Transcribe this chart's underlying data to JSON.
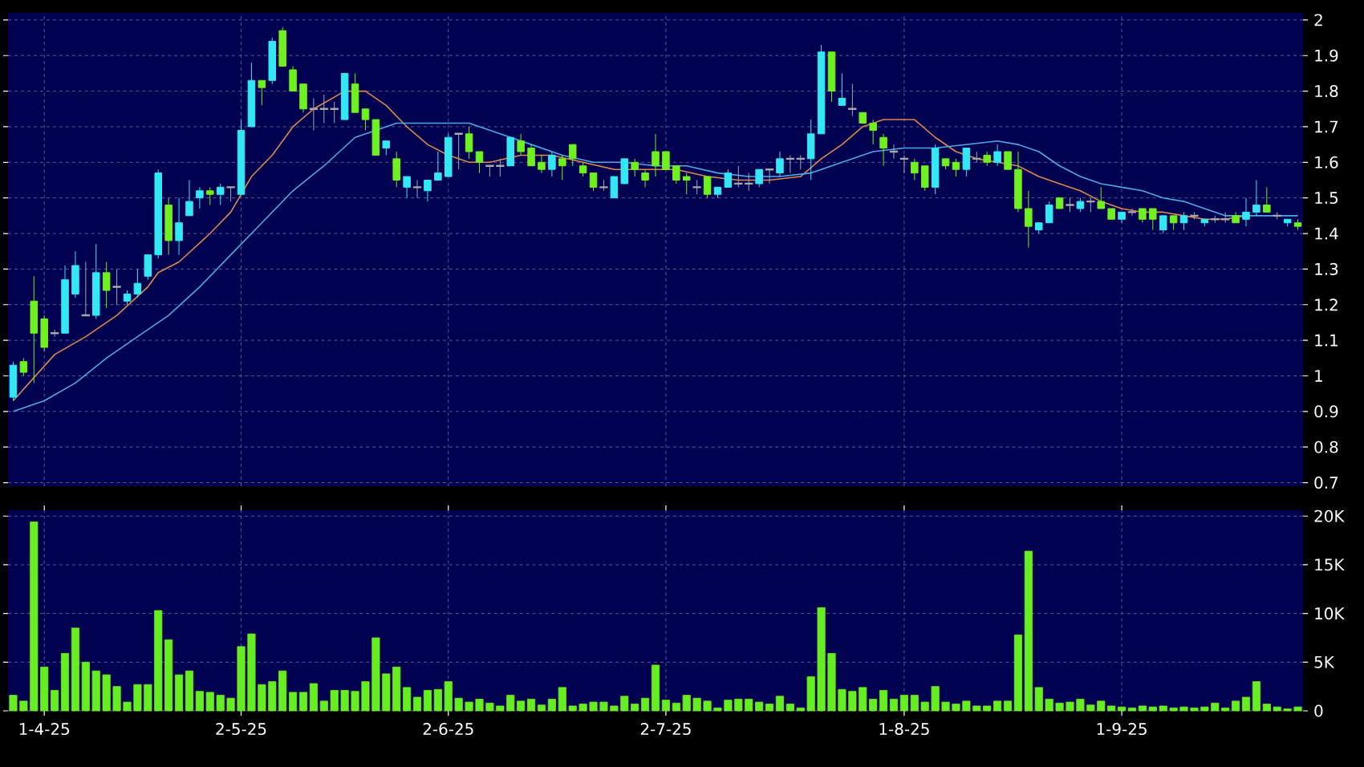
{
  "chart_data": [
    {
      "type": "candlestick",
      "grid": true,
      "tick_labels": "y",
      "ylim": [
        0.69,
        2.02
      ],
      "yticks": [
        0.7,
        0.8,
        0.9,
        1,
        1.1,
        1.2,
        1.3,
        1.4,
        1.5,
        1.6,
        1.7,
        1.8,
        1.9,
        2
      ],
      "categories": [
        null,
        null,
        null,
        null,
        null,
        null,
        null,
        null,
        null,
        null,
        null,
        null,
        null,
        null,
        null,
        null,
        null,
        null,
        null,
        null,
        null,
        null,
        null,
        null,
        null,
        null,
        null,
        null,
        null,
        null,
        null,
        null,
        null,
        null,
        null,
        null,
        null,
        null,
        null,
        null,
        null,
        null,
        null,
        null,
        null,
        null,
        null,
        null,
        null,
        null,
        null,
        null,
        null,
        null,
        null,
        null,
        null,
        null,
        null,
        null,
        null,
        null,
        null,
        null,
        null,
        null,
        null,
        null,
        null,
        null,
        null,
        null,
        null,
        null,
        null,
        null,
        null,
        null,
        null,
        null,
        null,
        null,
        null,
        null,
        null,
        null,
        null,
        null,
        null,
        null,
        null,
        null,
        null,
        null,
        null,
        null,
        null,
        null,
        null,
        null,
        null,
        null,
        null,
        null,
        null,
        null,
        null,
        null,
        null,
        null,
        null,
        null,
        null,
        null,
        null,
        null,
        null,
        null,
        null,
        null,
        null,
        null,
        null,
        null,
        null
      ],
      "ohlc": [
        [
          0.94,
          1.04,
          0.93,
          1.03
        ],
        [
          1.04,
          1.05,
          1.0,
          1.01
        ],
        [
          1.21,
          1.28,
          0.98,
          1.12
        ],
        [
          1.16,
          1.17,
          1.07,
          1.08
        ],
        [
          1.12,
          1.13,
          1.11,
          1.12
        ],
        [
          1.12,
          1.31,
          1.12,
          1.27
        ],
        [
          1.23,
          1.35,
          1.22,
          1.31
        ],
        [
          1.17,
          1.32,
          1.17,
          1.17
        ],
        [
          1.17,
          1.37,
          1.16,
          1.29
        ],
        [
          1.29,
          1.32,
          1.19,
          1.24
        ],
        [
          1.25,
          1.3,
          1.2,
          1.25
        ],
        [
          1.21,
          1.24,
          1.2,
          1.23
        ],
        [
          1.23,
          1.3,
          1.22,
          1.26
        ],
        [
          1.28,
          1.34,
          1.27,
          1.34
        ],
        [
          1.34,
          1.58,
          1.33,
          1.57
        ],
        [
          1.48,
          1.5,
          1.34,
          1.38
        ],
        [
          1.38,
          1.5,
          1.34,
          1.43
        ],
        [
          1.45,
          1.55,
          1.45,
          1.49
        ],
        [
          1.5,
          1.53,
          1.47,
          1.52
        ],
        [
          1.52,
          1.53,
          1.48,
          1.51
        ],
        [
          1.51,
          1.54,
          1.48,
          1.53
        ],
        [
          1.53,
          1.53,
          1.49,
          1.53
        ],
        [
          1.51,
          1.72,
          1.51,
          1.69
        ],
        [
          1.7,
          1.88,
          1.7,
          1.83
        ],
        [
          1.83,
          1.83,
          1.76,
          1.81
        ],
        [
          1.83,
          1.95,
          1.82,
          1.94
        ],
        [
          1.97,
          1.98,
          1.87,
          1.87
        ],
        [
          1.86,
          1.87,
          1.8,
          1.8
        ],
        [
          1.82,
          1.82,
          1.74,
          1.75
        ],
        [
          1.75,
          1.78,
          1.69,
          1.75
        ],
        [
          1.75,
          1.79,
          1.71,
          1.75
        ],
        [
          1.75,
          1.77,
          1.71,
          1.75
        ],
        [
          1.72,
          1.85,
          1.72,
          1.85
        ],
        [
          1.82,
          1.85,
          1.74,
          1.74
        ],
        [
          1.75,
          1.75,
          1.69,
          1.72
        ],
        [
          1.72,
          1.72,
          1.62,
          1.62
        ],
        [
          1.64,
          1.66,
          1.62,
          1.66
        ],
        [
          1.61,
          1.63,
          1.53,
          1.55
        ],
        [
          1.53,
          1.56,
          1.5,
          1.56
        ],
        [
          1.53,
          1.55,
          1.5,
          1.53
        ],
        [
          1.52,
          1.55,
          1.49,
          1.55
        ],
        [
          1.55,
          1.63,
          1.55,
          1.57
        ],
        [
          1.56,
          1.68,
          1.56,
          1.67
        ],
        [
          1.68,
          1.68,
          1.58,
          1.68
        ],
        [
          1.68,
          1.7,
          1.61,
          1.63
        ],
        [
          1.63,
          1.63,
          1.57,
          1.6
        ],
        [
          1.59,
          1.59,
          1.56,
          1.59
        ],
        [
          1.59,
          1.61,
          1.56,
          1.59
        ],
        [
          1.59,
          1.67,
          1.59,
          1.67
        ],
        [
          1.66,
          1.68,
          1.62,
          1.63
        ],
        [
          1.64,
          1.65,
          1.59,
          1.59
        ],
        [
          1.6,
          1.62,
          1.57,
          1.58
        ],
        [
          1.58,
          1.63,
          1.56,
          1.62
        ],
        [
          1.61,
          1.62,
          1.55,
          1.59
        ],
        [
          1.65,
          1.65,
          1.59,
          1.61
        ],
        [
          1.59,
          1.6,
          1.56,
          1.57
        ],
        [
          1.57,
          1.57,
          1.52,
          1.53
        ],
        [
          1.53,
          1.55,
          1.52,
          1.53
        ],
        [
          1.5,
          1.56,
          1.5,
          1.56
        ],
        [
          1.54,
          1.61,
          1.54,
          1.61
        ],
        [
          1.6,
          1.61,
          1.56,
          1.58
        ],
        [
          1.57,
          1.58,
          1.53,
          1.55
        ],
        [
          1.63,
          1.68,
          1.56,
          1.59
        ],
        [
          1.63,
          1.63,
          1.58,
          1.58
        ],
        [
          1.59,
          1.59,
          1.54,
          1.55
        ],
        [
          1.56,
          1.57,
          1.51,
          1.55
        ],
        [
          1.53,
          1.55,
          1.51,
          1.53
        ],
        [
          1.56,
          1.56,
          1.5,
          1.51
        ],
        [
          1.51,
          1.53,
          1.5,
          1.53
        ],
        [
          1.53,
          1.58,
          1.53,
          1.57
        ],
        [
          1.54,
          1.59,
          1.53,
          1.54
        ],
        [
          1.54,
          1.57,
          1.52,
          1.54
        ],
        [
          1.54,
          1.58,
          1.53,
          1.58
        ],
        [
          1.58,
          1.58,
          1.54,
          1.58
        ],
        [
          1.57,
          1.63,
          1.56,
          1.61
        ],
        [
          1.61,
          1.62,
          1.57,
          1.61
        ],
        [
          1.61,
          1.62,
          1.58,
          1.61
        ],
        [
          1.61,
          1.72,
          1.55,
          1.68
        ],
        [
          1.68,
          1.93,
          1.68,
          1.91
        ],
        [
          1.91,
          1.91,
          1.77,
          1.8
        ],
        [
          1.76,
          1.85,
          1.76,
          1.78
        ],
        [
          1.75,
          1.82,
          1.73,
          1.75
        ],
        [
          1.74,
          1.74,
          1.71,
          1.71
        ],
        [
          1.71,
          1.72,
          1.65,
          1.69
        ],
        [
          1.67,
          1.68,
          1.59,
          1.64
        ],
        [
          1.63,
          1.65,
          1.61,
          1.63
        ],
        [
          1.61,
          1.62,
          1.57,
          1.61
        ],
        [
          1.6,
          1.61,
          1.55,
          1.57
        ],
        [
          1.59,
          1.59,
          1.52,
          1.53
        ],
        [
          1.53,
          1.65,
          1.51,
          1.64
        ],
        [
          1.61,
          1.61,
          1.58,
          1.59
        ],
        [
          1.6,
          1.61,
          1.56,
          1.58
        ],
        [
          1.58,
          1.64,
          1.56,
          1.64
        ],
        [
          1.61,
          1.63,
          1.6,
          1.61
        ],
        [
          1.62,
          1.63,
          1.59,
          1.6
        ],
        [
          1.6,
          1.65,
          1.59,
          1.63
        ],
        [
          1.63,
          1.63,
          1.58,
          1.58
        ],
        [
          1.58,
          1.63,
          1.46,
          1.47
        ],
        [
          1.47,
          1.52,
          1.36,
          1.42
        ],
        [
          1.41,
          1.43,
          1.4,
          1.43
        ],
        [
          1.43,
          1.49,
          1.43,
          1.48
        ],
        [
          1.5,
          1.5,
          1.47,
          1.47
        ],
        [
          1.48,
          1.5,
          1.46,
          1.48
        ],
        [
          1.47,
          1.5,
          1.46,
          1.49
        ],
        [
          1.49,
          1.5,
          1.46,
          1.49
        ],
        [
          1.49,
          1.53,
          1.47,
          1.47
        ],
        [
          1.47,
          1.47,
          1.44,
          1.44
        ],
        [
          1.44,
          1.46,
          1.43,
          1.46
        ],
        [
          1.46,
          1.47,
          1.45,
          1.46
        ],
        [
          1.47,
          1.47,
          1.43,
          1.44
        ],
        [
          1.47,
          1.47,
          1.41,
          1.44
        ],
        [
          1.41,
          1.45,
          1.4,
          1.45
        ],
        [
          1.45,
          1.45,
          1.41,
          1.43
        ],
        [
          1.43,
          1.46,
          1.41,
          1.45
        ],
        [
          1.45,
          1.46,
          1.44,
          1.45
        ],
        [
          1.43,
          1.44,
          1.42,
          1.44
        ],
        [
          1.44,
          1.45,
          1.43,
          1.44
        ],
        [
          1.44,
          1.46,
          1.43,
          1.44
        ],
        [
          1.45,
          1.46,
          1.43,
          1.43
        ],
        [
          1.44,
          1.5,
          1.42,
          1.46
        ],
        [
          1.46,
          1.55,
          1.45,
          1.48
        ],
        [
          1.48,
          1.53,
          1.46,
          1.46
        ],
        [
          1.45,
          1.46,
          1.44,
          1.45
        ],
        [
          1.43,
          1.44,
          1.42,
          1.44
        ],
        [
          1.43,
          1.44,
          1.41,
          1.42
        ]
      ],
      "colors": [
        "#33e8f4",
        "#6ef021",
        "#6ef021",
        "#6ef021",
        "#a8a8a8",
        "#33e8f4",
        "#33e8f4",
        "#a8a8a8",
        "#33e8f4",
        "#6ef021",
        "#a8a8a8",
        "#33e8f4",
        "#33e8f4",
        "#33e8f4",
        "#33e8f4",
        "#6ef021",
        "#33e8f4",
        "#33e8f4",
        "#33e8f4",
        "#6ef021",
        "#33e8f4",
        "#a8a8a8",
        "#33e8f4",
        "#33e8f4",
        "#6ef021",
        "#33e8f4",
        "#6ef021",
        "#6ef021",
        "#6ef021",
        "#a8a8a8",
        "#a8a8a8",
        "#a8a8a8",
        "#33e8f4",
        "#6ef021",
        "#6ef021",
        "#6ef021",
        "#33e8f4",
        "#6ef021",
        "#33e8f4",
        "#a8a8a8",
        "#33e8f4",
        "#33e8f4",
        "#33e8f4",
        "#a8a8a8",
        "#6ef021",
        "#6ef021",
        "#a8a8a8",
        "#a8a8a8",
        "#33e8f4",
        "#6ef021",
        "#6ef021",
        "#6ef021",
        "#33e8f4",
        "#6ef021",
        "#6ef021",
        "#6ef021",
        "#6ef021",
        "#a8a8a8",
        "#33e8f4",
        "#33e8f4",
        "#6ef021",
        "#6ef021",
        "#6ef021",
        "#6ef021",
        "#6ef021",
        "#6ef021",
        "#a8a8a8",
        "#6ef021",
        "#33e8f4",
        "#33e8f4",
        "#a8a8a8",
        "#a8a8a8",
        "#33e8f4",
        "#a8a8a8",
        "#33e8f4",
        "#a8a8a8",
        "#a8a8a8",
        "#33e8f4",
        "#33e8f4",
        "#6ef021",
        "#33e8f4",
        "#a8a8a8",
        "#6ef021",
        "#6ef021",
        "#6ef021",
        "#a8a8a8",
        "#a8a8a8",
        "#6ef021",
        "#6ef021",
        "#33e8f4",
        "#6ef021",
        "#6ef021",
        "#33e8f4",
        "#a8a8a8",
        "#6ef021",
        "#33e8f4",
        "#6ef021",
        "#6ef021",
        "#6ef021",
        "#33e8f4",
        "#33e8f4",
        "#6ef021",
        "#a8a8a8",
        "#33e8f4",
        "#a8a8a8",
        "#6ef021",
        "#6ef021",
        "#33e8f4",
        "#a8a8a8",
        "#6ef021",
        "#6ef021",
        "#33e8f4",
        "#6ef021",
        "#33e8f4",
        "#a8a8a8",
        "#33e8f4",
        "#a8a8a8",
        "#a8a8a8",
        "#6ef021",
        "#33e8f4",
        "#33e8f4",
        "#6ef021",
        "#a8a8a8",
        "#33e8f4",
        "#6ef021"
      ],
      "series": [
        {
          "type": "line",
          "color": "#e0874c",
          "values": [
            0.93,
            null,
            null,
            null,
            1.06,
            null,
            null,
            1.11,
            null,
            null,
            1.17,
            null,
            null,
            1.25,
            1.29,
            null,
            1.32,
            null,
            null,
            1.4,
            null,
            1.46,
            null,
            1.56,
            null,
            1.62,
            null,
            1.7,
            null,
            1.75,
            null,
            null,
            1.8,
            null,
            1.8,
            null,
            1.76,
            null,
            1.7,
            null,
            1.65,
            null,
            1.62,
            null,
            1.6,
            null,
            1.6,
            null,
            null,
            1.62,
            null,
            null,
            1.62,
            null,
            null,
            1.6,
            null,
            null,
            1.58,
            null,
            null,
            1.58,
            null,
            null,
            1.58,
            null,
            null,
            1.56,
            null,
            null,
            1.55,
            null,
            null,
            1.55,
            null,
            null,
            1.56,
            null,
            1.61,
            null,
            1.65,
            null,
            1.7,
            null,
            1.72,
            null,
            1.72,
            1.72,
            null,
            1.67,
            null,
            1.63,
            null,
            1.61,
            null,
            1.6,
            null,
            1.59,
            null,
            1.56,
            null,
            1.54,
            null,
            1.52,
            null,
            1.49,
            null,
            1.47,
            null,
            1.46,
            null,
            1.46,
            null,
            1.45,
            null,
            1.44,
            null,
            1.44,
            null,
            1.45,
            null,
            null,
            null,
            null,
            null
          ]
        },
        {
          "type": "line",
          "color": "#4aaae6",
          "values": [
            0.9,
            null,
            null,
            0.93,
            null,
            null,
            0.98,
            null,
            null,
            1.05,
            null,
            null,
            1.11,
            null,
            null,
            1.17,
            null,
            null,
            1.25,
            null,
            null,
            1.34,
            null,
            null,
            1.43,
            null,
            null,
            1.52,
            null,
            null,
            1.59,
            null,
            null,
            1.67,
            null,
            1.69,
            null,
            1.71,
            null,
            null,
            1.71,
            null,
            null,
            1.71,
            1.71,
            null,
            null,
            1.68,
            null,
            null,
            1.65,
            null,
            null,
            1.62,
            null,
            null,
            1.6,
            null,
            null,
            1.6,
            null,
            null,
            1.59,
            null,
            null,
            1.59,
            null,
            null,
            1.57,
            null,
            null,
            1.56,
            null,
            null,
            1.56,
            null,
            null,
            1.57,
            null,
            null,
            1.6,
            null,
            null,
            1.63,
            null,
            null,
            1.64,
            1.64,
            null,
            1.64,
            null,
            null,
            1.65,
            null,
            null,
            1.66,
            null,
            1.65,
            null,
            1.63,
            null,
            1.59,
            null,
            1.56,
            null,
            1.54,
            null,
            1.53,
            null,
            1.52,
            null,
            1.5,
            null,
            1.49,
            null,
            1.47,
            null,
            1.45,
            null,
            1.45,
            null,
            1.45,
            null,
            null,
            1.45
          ]
        }
      ]
    },
    {
      "type": "bar",
      "grid": true,
      "color": "#66ee22",
      "ylim": [
        0,
        20.6
      ],
      "yticks": [
        0,
        {
          "value": 5,
          "label": "5K"
        },
        {
          "value": 10,
          "label": "10K"
        },
        {
          "value": 15,
          "label": "15K"
        },
        {
          "value": 20,
          "label": "20K"
        }
      ],
      "categories": [
        null,
        null,
        null,
        "1-4-25",
        null,
        null,
        null,
        null,
        null,
        null,
        null,
        null,
        null,
        null,
        null,
        null,
        null,
        null,
        null,
        null,
        null,
        null,
        "2-5-25",
        null,
        null,
        null,
        null,
        null,
        null,
        null,
        null,
        null,
        null,
        null,
        null,
        null,
        null,
        null,
        null,
        null,
        null,
        null,
        "2-6-25",
        null,
        null,
        null,
        null,
        null,
        null,
        null,
        null,
        null,
        null,
        null,
        null,
        null,
        null,
        null,
        null,
        null,
        null,
        null,
        null,
        "2-7-25",
        null,
        null,
        null,
        null,
        null,
        null,
        null,
        null,
        null,
        null,
        null,
        null,
        null,
        null,
        null,
        null,
        null,
        null,
        null,
        null,
        null,
        null,
        "1-8-25",
        null,
        null,
        null,
        null,
        null,
        null,
        null,
        null,
        null,
        null,
        null,
        null,
        null,
        null,
        null,
        null,
        null,
        null,
        null,
        null,
        "1-9-25",
        null,
        null,
        null,
        null,
        null,
        null,
        null,
        null,
        null,
        null,
        null,
        null,
        null,
        null,
        null,
        null,
        null
      ],
      "values": [
        1.6,
        1.0,
        19.4,
        4.5,
        2.1,
        5.9,
        8.5,
        5.0,
        4.1,
        3.7,
        2.5,
        0.9,
        2.7,
        2.7,
        10.3,
        7.3,
        3.7,
        4.1,
        2.0,
        1.9,
        1.6,
        1.3,
        6.6,
        7.9,
        2.7,
        3.0,
        4.1,
        1.9,
        1.9,
        2.8,
        1.0,
        2.1,
        2.1,
        2.0,
        3.0,
        7.5,
        3.8,
        4.5,
        2.4,
        1.4,
        2.1,
        2.2,
        3.0,
        1.3,
        0.9,
        1.2,
        0.8,
        0.5,
        1.6,
        1.0,
        1.2,
        0.6,
        1.2,
        2.4,
        0.5,
        0.7,
        0.9,
        0.9,
        0.5,
        1.5,
        0.7,
        1.3,
        4.7,
        1.1,
        0.8,
        1.6,
        1.3,
        1.0,
        0.3,
        1.1,
        1.2,
        1.2,
        0.9,
        0.7,
        1.5,
        0.7,
        0.3,
        3.5,
        10.6,
        5.9,
        2.2,
        2.0,
        2.4,
        1.2,
        2.1,
        1.2,
        1.6,
        1.6,
        0.9,
        2.5,
        0.9,
        0.7,
        1.0,
        0.5,
        0.5,
        1.0,
        1.0,
        7.8,
        16.4,
        2.4,
        1.2,
        0.8,
        0.9,
        1.2,
        0.6,
        1.0,
        0.5,
        0.4,
        0.3,
        0.5,
        0.4,
        0.5,
        0.3,
        0.4,
        0.3,
        0.4,
        0.8,
        0.3,
        1.0,
        1.4,
        3.0,
        0.7,
        0.4,
        0.2,
        0.4
      ]
    }
  ]
}
